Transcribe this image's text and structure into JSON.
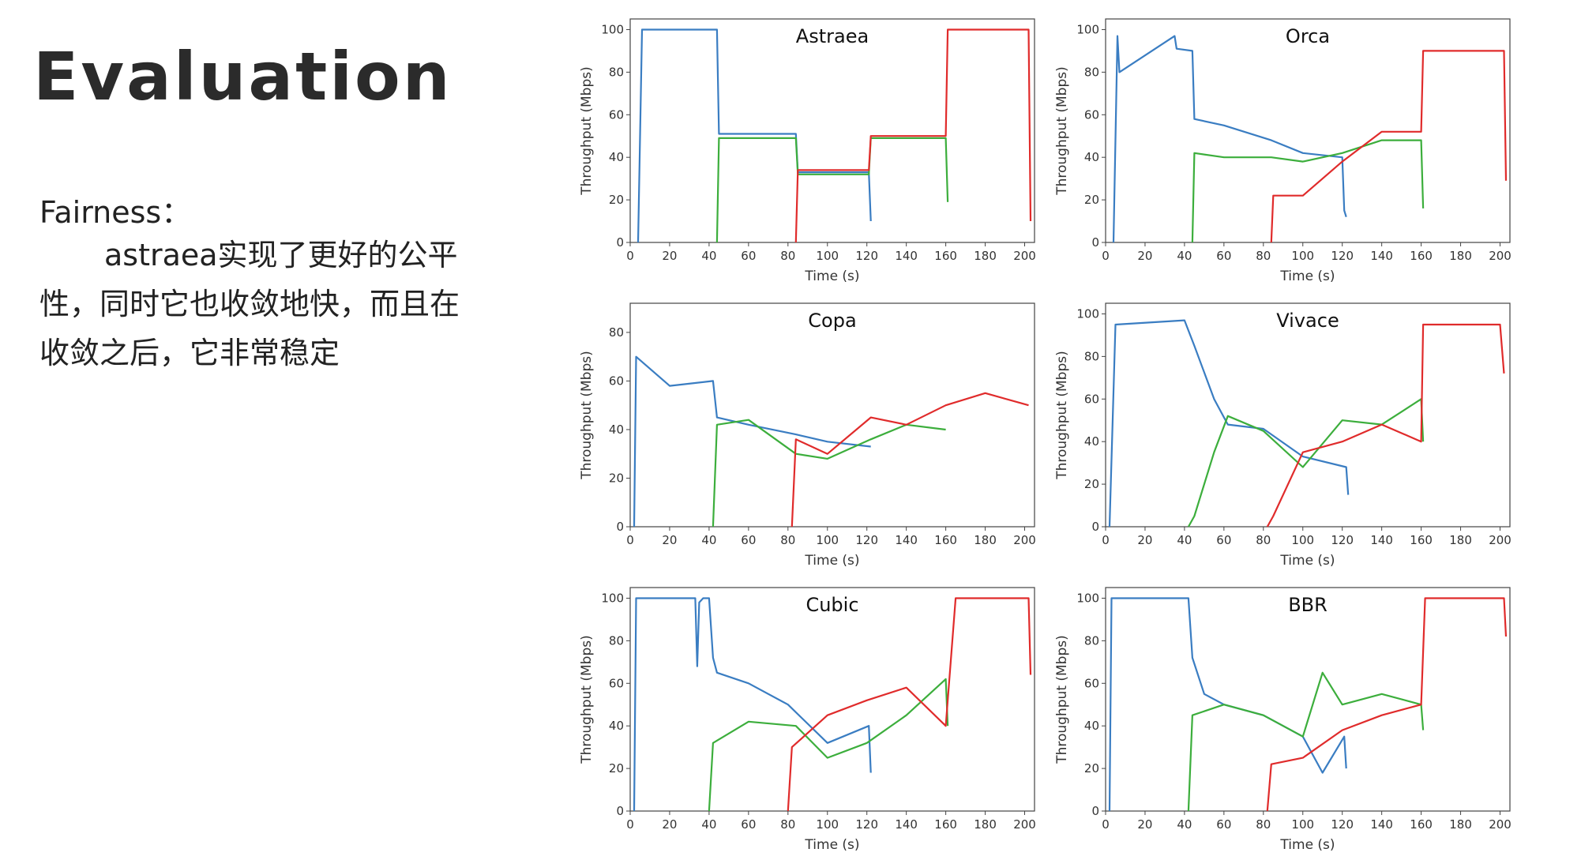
{
  "slide": {
    "title": "Evaluation",
    "heading": "Fairness：",
    "body_lines": [
      "astraea实现了更好的公平",
      "性，同时它也收敛地快，而且在",
      "收敛之后，它非常稳定"
    ]
  },
  "colors": {
    "flow1": "#3a7dc2",
    "flow2": "#3cae3c",
    "flow3": "#e02b2b"
  },
  "chart_data": [
    {
      "type": "line",
      "title": "Astraea",
      "xlabel": "Time (s)",
      "ylabel": "Throughput (Mbps)",
      "xlim": [
        0,
        205
      ],
      "ylim": [
        0,
        105
      ],
      "xticks": [
        0,
        20,
        40,
        60,
        80,
        100,
        120,
        140,
        160,
        180,
        200
      ],
      "yticks": [
        0,
        20,
        40,
        60,
        80,
        100
      ],
      "series": [
        {
          "color": "#3a7dc2",
          "x": [
            4,
            6,
            44,
            45,
            84,
            85,
            121,
            122
          ],
          "y": [
            0,
            100,
            100,
            51,
            51,
            33,
            33,
            10
          ]
        },
        {
          "color": "#3cae3c",
          "x": [
            44,
            45,
            84,
            85,
            121,
            122,
            160,
            161
          ],
          "y": [
            0,
            49,
            49,
            32,
            32,
            49,
            49,
            19
          ]
        },
        {
          "color": "#e02b2b",
          "x": [
            84,
            85,
            121,
            122,
            160,
            161,
            202,
            203
          ],
          "y": [
            0,
            34,
            34,
            50,
            50,
            100,
            100,
            10
          ]
        }
      ]
    },
    {
      "type": "line",
      "title": "Orca",
      "xlabel": "Time (s)",
      "ylabel": "Throughput (Mbps)",
      "xlim": [
        0,
        205
      ],
      "ylim": [
        0,
        105
      ],
      "xticks": [
        0,
        20,
        40,
        60,
        80,
        100,
        120,
        140,
        160,
        180,
        200
      ],
      "yticks": [
        0,
        20,
        40,
        60,
        80,
        100
      ],
      "series": [
        {
          "color": "#3a7dc2",
          "x": [
            4,
            6,
            7,
            35,
            36,
            44,
            45,
            60,
            84,
            100,
            120,
            121,
            122
          ],
          "y": [
            0,
            97,
            80,
            97,
            91,
            90,
            58,
            55,
            48,
            42,
            40,
            15,
            12
          ]
        },
        {
          "color": "#3cae3c",
          "x": [
            44,
            45,
            60,
            84,
            100,
            120,
            140,
            160,
            161
          ],
          "y": [
            0,
            42,
            40,
            40,
            38,
            42,
            48,
            48,
            16
          ]
        },
        {
          "color": "#e02b2b",
          "x": [
            84,
            85,
            100,
            120,
            140,
            160,
            161,
            202,
            203
          ],
          "y": [
            0,
            22,
            22,
            38,
            52,
            52,
            90,
            90,
            29
          ]
        }
      ]
    },
    {
      "type": "line",
      "title": "Copa",
      "xlabel": "Time (s)",
      "ylabel": "Throughput (Mbps)",
      "xlim": [
        0,
        205
      ],
      "ylim": [
        0,
        92
      ],
      "xticks": [
        0,
        20,
        40,
        60,
        80,
        100,
        120,
        140,
        160,
        180,
        200
      ],
      "yticks": [
        0,
        20,
        40,
        60,
        80
      ],
      "series": [
        {
          "color": "#3a7dc2",
          "x": [
            2,
            3,
            20,
            42,
            44,
            60,
            84,
            100,
            122
          ],
          "y": [
            0,
            70,
            58,
            60,
            45,
            42,
            38,
            35,
            33
          ]
        },
        {
          "color": "#3cae3c",
          "x": [
            42,
            44,
            60,
            84,
            100,
            122,
            140,
            160
          ],
          "y": [
            0,
            42,
            44,
            30,
            28,
            36,
            42,
            40
          ]
        },
        {
          "color": "#e02b2b",
          "x": [
            82,
            84,
            100,
            122,
            140,
            160,
            180,
            202
          ],
          "y": [
            0,
            36,
            30,
            45,
            42,
            50,
            55,
            50
          ]
        }
      ]
    },
    {
      "type": "line",
      "title": "Vivace",
      "xlabel": "Time (s)",
      "ylabel": "Throughput (Mbps)",
      "xlim": [
        0,
        205
      ],
      "ylim": [
        0,
        105
      ],
      "xticks": [
        0,
        20,
        40,
        60,
        80,
        100,
        120,
        140,
        160,
        180,
        200
      ],
      "yticks": [
        0,
        20,
        40,
        60,
        80,
        100
      ],
      "series": [
        {
          "color": "#3a7dc2",
          "x": [
            2,
            5,
            40,
            45,
            55,
            62,
            80,
            100,
            122,
            123
          ],
          "y": [
            0,
            95,
            97,
            85,
            60,
            48,
            46,
            33,
            28,
            15
          ]
        },
        {
          "color": "#3cae3c",
          "x": [
            42,
            45,
            55,
            62,
            80,
            100,
            120,
            140,
            160,
            161
          ],
          "y": [
            0,
            5,
            35,
            52,
            45,
            28,
            50,
            48,
            60,
            40
          ]
        },
        {
          "color": "#e02b2b",
          "x": [
            82,
            85,
            100,
            120,
            140,
            160,
            161,
            200,
            202
          ],
          "y": [
            0,
            5,
            35,
            40,
            48,
            40,
            95,
            95,
            72
          ]
        }
      ]
    },
    {
      "type": "line",
      "title": "Cubic",
      "xlabel": "Time (s)",
      "ylabel": "Throughput (Mbps)",
      "xlim": [
        0,
        205
      ],
      "ylim": [
        0,
        105
      ],
      "xticks": [
        0,
        20,
        40,
        60,
        80,
        100,
        120,
        140,
        160,
        180,
        200
      ],
      "yticks": [
        0,
        20,
        40,
        60,
        80,
        100
      ],
      "series": [
        {
          "color": "#3a7dc2",
          "x": [
            2,
            3,
            33,
            34,
            35,
            37,
            40,
            42,
            44,
            60,
            80,
            100,
            121,
            122
          ],
          "y": [
            0,
            100,
            100,
            68,
            98,
            100,
            100,
            72,
            65,
            60,
            50,
            32,
            40,
            18
          ]
        },
        {
          "color": "#3cae3c",
          "x": [
            40,
            42,
            60,
            84,
            100,
            120,
            140,
            160,
            161
          ],
          "y": [
            0,
            32,
            42,
            40,
            25,
            32,
            45,
            62,
            40
          ]
        },
        {
          "color": "#e02b2b",
          "x": [
            80,
            82,
            100,
            120,
            140,
            160,
            165,
            202,
            203
          ],
          "y": [
            0,
            30,
            45,
            52,
            58,
            40,
            100,
            100,
            64
          ]
        }
      ]
    },
    {
      "type": "line",
      "title": "BBR",
      "xlabel": "Time (s)",
      "ylabel": "Throughput (Mbps)",
      "xlim": [
        0,
        205
      ],
      "ylim": [
        0,
        105
      ],
      "xticks": [
        0,
        20,
        40,
        60,
        80,
        100,
        120,
        140,
        160,
        180,
        200
      ],
      "yticks": [
        0,
        20,
        40,
        60,
        80,
        100
      ],
      "series": [
        {
          "color": "#3a7dc2",
          "x": [
            2,
            3,
            42,
            44,
            50,
            60,
            80,
            100,
            110,
            121,
            122
          ],
          "y": [
            0,
            100,
            100,
            72,
            55,
            50,
            45,
            35,
            18,
            35,
            20
          ]
        },
        {
          "color": "#3cae3c",
          "x": [
            42,
            44,
            60,
            80,
            100,
            110,
            120,
            140,
            160,
            161
          ],
          "y": [
            0,
            45,
            50,
            45,
            35,
            65,
            50,
            55,
            50,
            38
          ]
        },
        {
          "color": "#e02b2b",
          "x": [
            82,
            84,
            100,
            120,
            140,
            160,
            162,
            202,
            203
          ],
          "y": [
            0,
            22,
            25,
            38,
            45,
            50,
            100,
            100,
            82
          ]
        }
      ]
    }
  ]
}
